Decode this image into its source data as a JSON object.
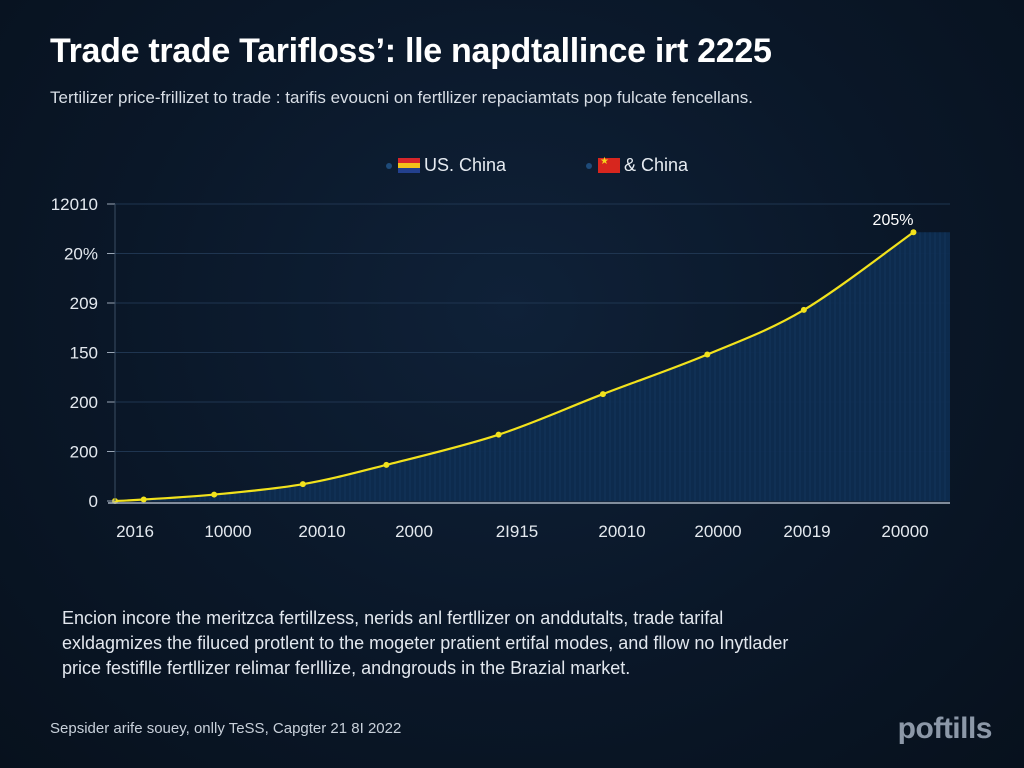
{
  "header": {
    "title": "Trade trade Tarifloss’: lle napdtallince irt 2225",
    "subtitle": "Tertilizer price-frillizet to trade : tarifis evoucni on fertllizer repaciamtats pop fulcate fencellans."
  },
  "legend": {
    "items": [
      {
        "label": "US. China",
        "icon": "us-flag-icon"
      },
      {
        "label": "& China",
        "icon": "china-flag-icon"
      }
    ]
  },
  "chart_data": {
    "type": "area",
    "title": "",
    "xlabel": "",
    "ylabel": "",
    "y_tick_labels": [
      "0",
      "200",
      "200",
      "150",
      "209",
      "20%",
      "12010"
    ],
    "x_tick_labels": [
      "2016",
      "10000",
      "20010",
      "2000",
      "2I915",
      "20010",
      "20000",
      "20019",
      "20000"
    ],
    "ylim": [
      0,
      6
    ],
    "series": [
      {
        "color": "#f2e21c",
        "x": [
          0,
          0.55,
          1.9,
          3.6,
          5.2,
          7.35,
          9.35,
          11.35,
          13.2,
          15.3
        ],
        "y": [
          0,
          0.03,
          0.13,
          0.34,
          0.73,
          1.34,
          2.16,
          2.96,
          3.86,
          5.43
        ]
      }
    ],
    "annotation": {
      "text": "205%",
      "point_index": 9
    },
    "grid": true,
    "fill_color": "#0e2c4f"
  },
  "description": {
    "lines": [
      "Encion incore the meritzca fertillzess, nerids anl fertllizer on anddutalts, trade tarifal",
      "exldagmizes the filuced protlent to the mogeter pratient ertifal modes, and fllow no Inytlader",
      "price festiflle fertllizer relimar ferlllize, andngrouds in the Brazial market."
    ]
  },
  "footer": {
    "source": "Sepsider arife souey, onlly TeSS, Capgter 21 8I 2022",
    "logo": "poftills"
  }
}
